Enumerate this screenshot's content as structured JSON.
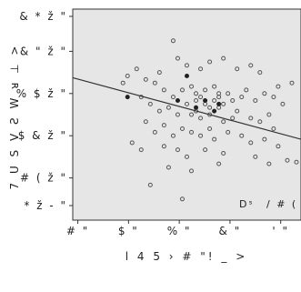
{
  "chart_data": {
    "type": "scatter",
    "xlabel": "l 4 5 › # \"! _ >",
    "ylabel": "7  U S V Ƨ W ᴚ ⊥ >",
    "x_ticks": [
      "# \"",
      "$ \"",
      "% \"",
      "& \"",
      "' \""
    ],
    "y_ticks": [
      "& * ž \"",
      "& \" ž \"",
      "% $ ž \"",
      "$ & ž \"",
      "# ( ž \"",
      "* ž - \""
    ],
    "annotation_left": "Dˢ",
    "annotation_right": "/ # ( ±",
    "xlim": [
      0,
      5
    ],
    "ylim": [
      0,
      6
    ],
    "grid": false,
    "background": "#e6e6e6",
    "regression_line": {
      "x": [
        0,
        5
      ],
      "y": [
        4.05,
        2.3
      ],
      "color": "#333333"
    },
    "series": [
      {
        "marker": "circle-open",
        "color": "#555555",
        "points": [
          [
            2.2,
            5.1
          ],
          [
            2.3,
            4.6
          ],
          [
            1.9,
            4.2
          ],
          [
            2.5,
            4.4
          ],
          [
            2.8,
            4.3
          ],
          [
            3.0,
            4.5
          ],
          [
            3.3,
            4.6
          ],
          [
            3.6,
            4.3
          ],
          [
            3.9,
            4.4
          ],
          [
            4.1,
            4.2
          ],
          [
            1.4,
            4.3
          ],
          [
            1.6,
            4.0
          ],
          [
            1.2,
            4.1
          ],
          [
            1.1,
            3.9
          ],
          [
            1.8,
            3.9
          ],
          [
            2.0,
            3.7
          ],
          [
            2.2,
            3.5
          ],
          [
            2.4,
            3.7
          ],
          [
            2.6,
            3.8
          ],
          [
            2.7,
            3.6
          ],
          [
            2.9,
            3.7
          ],
          [
            3.1,
            3.8
          ],
          [
            3.2,
            3.5
          ],
          [
            3.4,
            3.6
          ],
          [
            3.5,
            3.4
          ],
          [
            3.7,
            3.5
          ],
          [
            3.8,
            3.7
          ],
          [
            4.0,
            3.4
          ],
          [
            4.2,
            3.6
          ],
          [
            4.4,
            3.5
          ],
          [
            4.5,
            3.8
          ],
          [
            4.6,
            3.3
          ],
          [
            4.8,
            3.9
          ],
          [
            1.5,
            3.5
          ],
          [
            1.7,
            3.3
          ],
          [
            1.9,
            3.1
          ],
          [
            2.1,
            3.2
          ],
          [
            2.3,
            3.0
          ],
          [
            2.5,
            3.3
          ],
          [
            2.7,
            3.1
          ],
          [
            2.8,
            2.9
          ],
          [
            3.0,
            3.0
          ],
          [
            3.2,
            3.2
          ],
          [
            3.3,
            2.8
          ],
          [
            3.5,
            2.9
          ],
          [
            3.6,
            3.1
          ],
          [
            3.9,
            2.9
          ],
          [
            4.1,
            2.8
          ],
          [
            4.3,
            3.0
          ],
          [
            4.4,
            2.6
          ],
          [
            1.6,
            2.8
          ],
          [
            1.8,
            2.5
          ],
          [
            2.0,
            2.7
          ],
          [
            2.2,
            2.4
          ],
          [
            2.4,
            2.6
          ],
          [
            2.6,
            2.5
          ],
          [
            2.8,
            2.4
          ],
          [
            3.0,
            2.6
          ],
          [
            3.1,
            2.3
          ],
          [
            3.4,
            2.5
          ],
          [
            3.7,
            2.4
          ],
          [
            3.9,
            2.2
          ],
          [
            4.2,
            2.3
          ],
          [
            4.5,
            2.1
          ],
          [
            4.7,
            1.7
          ],
          [
            4.9,
            1.65
          ],
          [
            1.3,
            2.2
          ],
          [
            1.5,
            2.0
          ],
          [
            2.0,
            2.1
          ],
          [
            2.3,
            2.0
          ],
          [
            2.5,
            1.8
          ],
          [
            2.9,
            2.0
          ],
          [
            3.3,
            1.9
          ],
          [
            4.0,
            1.8
          ],
          [
            4.3,
            1.6
          ],
          [
            2.1,
            1.5
          ],
          [
            2.6,
            1.4
          ],
          [
            3.2,
            1.6
          ],
          [
            2.4,
            0.6
          ],
          [
            1.7,
            1.0
          ],
          [
            2.7,
            3.4
          ],
          [
            2.9,
            3.3
          ],
          [
            3.1,
            3.4
          ],
          [
            3.3,
            3.3
          ],
          [
            3.0,
            3.2
          ],
          [
            2.8,
            3.5
          ],
          [
            3.2,
            3.6
          ],
          [
            2.6,
            3.0
          ]
        ]
      },
      {
        "marker": "circle-filled",
        "color": "#222222",
        "points": [
          [
            1.2,
            3.5
          ],
          [
            2.5,
            4.1
          ],
          [
            2.9,
            3.4
          ],
          [
            3.1,
            3.1
          ],
          [
            2.7,
            3.2
          ],
          [
            3.2,
            3.3
          ],
          [
            2.3,
            3.4
          ]
        ]
      }
    ]
  }
}
